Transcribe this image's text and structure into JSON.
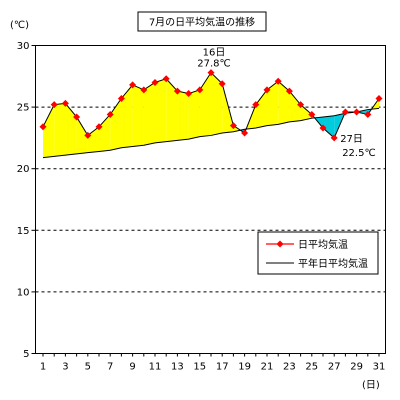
{
  "chart_data": {
    "type": "line",
    "title": "7月の日平均気温の推移",
    "y_unit": "(℃)",
    "x_unit": "(日)",
    "ylim": [
      5,
      30
    ],
    "yticks": [
      5,
      10,
      15,
      20,
      25,
      30
    ],
    "xticks": [
      1,
      3,
      5,
      7,
      9,
      11,
      13,
      15,
      17,
      19,
      21,
      23,
      25,
      27,
      29,
      31
    ],
    "grid": "dashed horizontal at 20, 25, 30",
    "legend_position": "middle-right",
    "days": [
      1,
      2,
      3,
      4,
      5,
      6,
      7,
      8,
      9,
      10,
      11,
      12,
      13,
      14,
      15,
      16,
      17,
      18,
      19,
      20,
      21,
      22,
      23,
      24,
      25,
      26,
      27,
      28,
      29,
      30,
      31
    ],
    "series": [
      {
        "name": "日平均気温",
        "color": "#ff0000",
        "values": [
          23.4,
          25.2,
          25.3,
          24.2,
          22.7,
          23.4,
          24.4,
          25.7,
          26.8,
          26.4,
          27.0,
          27.3,
          26.3,
          26.1,
          26.4,
          27.8,
          26.9,
          23.5,
          22.9,
          25.2,
          26.4,
          27.1,
          26.3,
          25.2,
          24.4,
          23.3,
          22.5,
          24.6,
          24.6,
          24.4,
          25.7
        ]
      },
      {
        "name": "平年日平均気温",
        "color": "#000000",
        "values": [
          20.9,
          21.0,
          21.1,
          21.2,
          21.3,
          21.4,
          21.5,
          21.7,
          21.8,
          21.9,
          22.1,
          22.2,
          22.3,
          22.4,
          22.6,
          22.7,
          22.9,
          23.0,
          23.2,
          23.3,
          23.5,
          23.6,
          23.8,
          23.9,
          24.1,
          24.2,
          24.3,
          24.5,
          24.6,
          24.8,
          24.9
        ]
      }
    ],
    "above_fill_color": "#ffff00",
    "below_fill_color": "#00ccdd",
    "annotations": [
      {
        "day": 16,
        "value": 27.8,
        "day_label": "16日",
        "value_label": "27.8℃"
      },
      {
        "day": 27,
        "value": 22.5,
        "day_label": "27日",
        "value_label": "22.5℃"
      }
    ]
  }
}
